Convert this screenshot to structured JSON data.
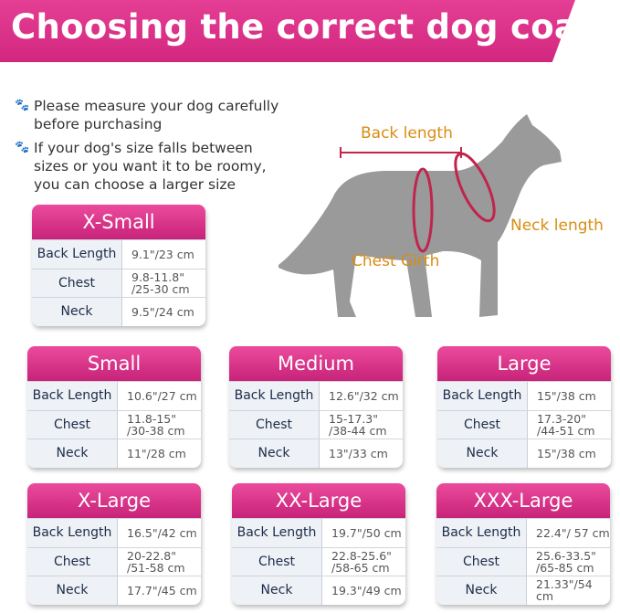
{
  "title": "Choosing the correct dog coat",
  "tips": [
    "Please measure your dog carefully before purchasing",
    "If your dog's size falls between sizes or you want it to be roomy, you can choose a larger size"
  ],
  "diagram": {
    "back_length": "Back length",
    "neck_length": "Neck length",
    "chest_girth": "Chest Girth"
  },
  "row_labels": {
    "back": "Back Length",
    "chest": "Chest",
    "neck": "Neck"
  },
  "sizes": [
    {
      "name": "X-Small",
      "back": "9.1\"/23 cm",
      "chest": "9.8-11.8\" /25-30 cm",
      "neck": "9.5\"/24 cm"
    },
    {
      "name": "Small",
      "back": "10.6\"/27 cm",
      "chest": "11.8-15\" /30-38 cm",
      "neck": "11\"/28 cm"
    },
    {
      "name": "Medium",
      "back": "12.6\"/32 cm",
      "chest": "15-17.3\" /38-44 cm",
      "neck": "13\"/33 cm"
    },
    {
      "name": "Large",
      "back": "15\"/38 cm",
      "chest": "17.3-20\" /44-51 cm",
      "neck": "15\"/38 cm"
    },
    {
      "name": "X-Large",
      "back": "16.5\"/42 cm",
      "chest": "20-22.8\" /51-58 cm",
      "neck": "17.7\"/45 cm"
    },
    {
      "name": "XX-Large",
      "back": "19.7\"/50 cm",
      "chest": "22.8-25.6\" /58-65 cm",
      "neck": "19.3\"/49 cm"
    },
    {
      "name": "XXX-Large",
      "back": "22.4\"/ 57 cm",
      "chest": "25.6-33.5\" /65-85 cm",
      "neck": "21.33\"/54 cm"
    }
  ],
  "colors": {
    "brand": "#d92f87",
    "accent": "#d88d12",
    "measure": "#c0254e"
  }
}
